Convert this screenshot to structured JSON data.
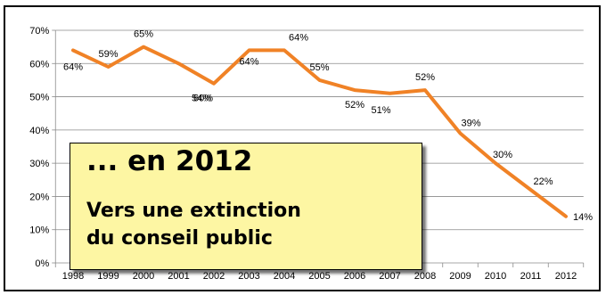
{
  "chart_data": {
    "type": "line",
    "categories": [
      "1998",
      "1999",
      "2000",
      "2001",
      "2002",
      "2003",
      "2004",
      "2005",
      "2006",
      "2007",
      "2008",
      "2009",
      "2010",
      "2011",
      "2012"
    ],
    "series": [
      {
        "values": [
          64,
          59,
          65,
          60,
          54,
          64,
          64,
          55,
          52,
          51,
          52,
          39,
          30,
          22,
          14
        ]
      }
    ],
    "data_labels": [
      "64%",
      "59%",
      "65%",
      "60%",
      "54%",
      "64%",
      "64%",
      "55%",
      "52%",
      "51%",
      "52%",
      "39%",
      "30%",
      "22%",
      "14%"
    ],
    "y_ticks": [
      "0%",
      "10%",
      "20%",
      "30%",
      "40%",
      "50%",
      "60%",
      "70%"
    ],
    "ylim": [
      0,
      70
    ],
    "grid": true,
    "legend": "none",
    "line_color": "#f08226"
  },
  "callout": {
    "heading": "... en 2012",
    "line1": "Vers une extinction",
    "line2": "du conseil public",
    "background": "#fdf6a3"
  }
}
